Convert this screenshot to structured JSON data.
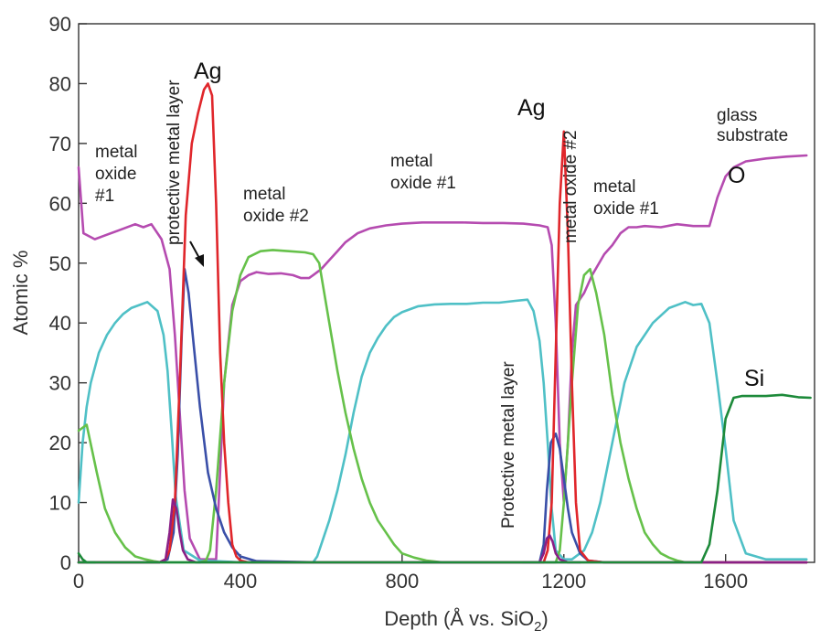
{
  "chart_data": {
    "type": "line",
    "xlabel": "Depth (Å vs. SiO",
    "xlabel_sub": "2",
    "xlabel_end": ")",
    "ylabel": "Atomic %",
    "xlim": [
      0,
      1820
    ],
    "ylim": [
      0,
      90
    ],
    "xticks": [
      "0",
      "400",
      "800",
      "1200",
      "1600"
    ],
    "xtick_values": [
      0,
      400,
      800,
      1200,
      1600
    ],
    "yticks": [
      "0",
      "10",
      "20",
      "30",
      "40",
      "50",
      "60",
      "70",
      "80",
      "90"
    ],
    "ytick_values": [
      0,
      10,
      20,
      30,
      40,
      50,
      60,
      70,
      80,
      90
    ],
    "grid": false,
    "annotations": {
      "metal_oxide_1_left": [
        "metal",
        "oxide",
        "#1"
      ],
      "protective_left": "protective metal layer",
      "ag_left": "Ag",
      "metal_oxide_2_left": [
        "metal",
        "oxide #2"
      ],
      "metal_oxide_1_mid": [
        "metal",
        "oxide #1"
      ],
      "ag_right": "Ag",
      "metal_oxide_2_right": "metal oxide #2",
      "protective_right": "Protective metal layer",
      "metal_oxide_1_right": [
        "metal",
        "oxide #1"
      ],
      "glass_substrate": [
        "glass",
        "substrate"
      ],
      "o_label": "O",
      "si_label": "Si"
    },
    "series": [
      {
        "color": "#b54bb0",
        "x": [
          0,
          12,
          40,
          60,
          100,
          140,
          160,
          180,
          205,
          225,
          238,
          250,
          262,
          275,
          300,
          320,
          340,
          360,
          380,
          400,
          420,
          440,
          470,
          500,
          530,
          550,
          570,
          580,
          600,
          620,
          640,
          660,
          690,
          720,
          760,
          800,
          850,
          900,
          950,
          1000,
          1050,
          1100,
          1140,
          1160,
          1170,
          1180,
          1190,
          1200,
          1210,
          1220,
          1230,
          1250,
          1270,
          1300,
          1320,
          1340,
          1360,
          1380,
          1400,
          1440,
          1480,
          1520,
          1560,
          1580,
          1600,
          1620,
          1650,
          1700,
          1750,
          1800
        ],
        "y": [
          66,
          55,
          54,
          54.5,
          55.5,
          56.5,
          56,
          56.5,
          54,
          49,
          38,
          25,
          12,
          4,
          0.5,
          0.5,
          0.5,
          30,
          43,
          47,
          48,
          48.5,
          48.2,
          48.3,
          48,
          47.5,
          47.5,
          48,
          49,
          50.5,
          52,
          53.5,
          55,
          55.8,
          56.3,
          56.6,
          56.8,
          56.8,
          56.8,
          56.7,
          56.7,
          56.6,
          56.3,
          56,
          53,
          40,
          20,
          10,
          20,
          35,
          43,
          45,
          48,
          51.5,
          53,
          55,
          56,
          56,
          56.2,
          56,
          56.5,
          56.2,
          56.2,
          61,
          64.5,
          66,
          67,
          67.5,
          67.8,
          68
        ]
      },
      {
        "color": "#4fc0c6",
        "x": [
          0,
          10,
          20,
          30,
          50,
          70,
          90,
          110,
          130,
          150,
          170,
          195,
          210,
          220,
          230,
          240,
          260,
          300,
          340,
          400,
          440,
          480,
          520,
          560,
          580,
          590,
          600,
          620,
          640,
          660,
          680,
          700,
          720,
          740,
          760,
          780,
          800,
          840,
          880,
          920,
          960,
          1000,
          1040,
          1080,
          1110,
          1125,
          1140,
          1150,
          1160,
          1170,
          1180,
          1200,
          1220,
          1250,
          1270,
          1290,
          1320,
          1350,
          1380,
          1420,
          1460,
          1500,
          1520,
          1540,
          1560,
          1580,
          1600,
          1620,
          1650,
          1700,
          1800
        ],
        "y": [
          10,
          20,
          26,
          30,
          35,
          38,
          40,
          41.5,
          42.5,
          43,
          43.5,
          42,
          38,
          32,
          22,
          11,
          2,
          0.3,
          0.2,
          0,
          0,
          0,
          0,
          0,
          0,
          1,
          3,
          7,
          12,
          18,
          25,
          31,
          35,
          37.5,
          39.5,
          41,
          41.8,
          42.8,
          43.1,
          43.2,
          43.2,
          43.4,
          43.4,
          43.7,
          43.9,
          42,
          37,
          30,
          20,
          9,
          2,
          0.5,
          0.5,
          2,
          5,
          10,
          20,
          30,
          36,
          40,
          42.5,
          43.5,
          43,
          43.2,
          40,
          30,
          19,
          7,
          1.5,
          0.5,
          0.5
        ]
      },
      {
        "color": "#66c14a",
        "x": [
          0,
          20,
          45,
          65,
          90,
          115,
          140,
          165,
          185,
          205,
          215,
          245,
          275,
          300,
          315,
          325,
          340,
          360,
          380,
          400,
          420,
          450,
          480,
          520,
          560,
          580,
          595,
          605,
          620,
          640,
          660,
          680,
          700,
          720,
          740,
          760,
          780,
          800,
          830,
          860,
          900,
          1000,
          1100,
          1180,
          1190,
          1200,
          1220,
          1235,
          1250,
          1265,
          1280,
          1300,
          1320,
          1340,
          1360,
          1380,
          1400,
          1420,
          1440,
          1460,
          1480,
          1500,
          1520,
          1540,
          1560,
          1580,
          1600,
          1620,
          1650,
          1700,
          1800
        ],
        "y": [
          22,
          23,
          15,
          9,
          5,
          2.5,
          1,
          0.5,
          0.2,
          0,
          0,
          0,
          0,
          0,
          0.3,
          2,
          12,
          30,
          42,
          48,
          51,
          52,
          52.2,
          52,
          51.8,
          51.5,
          50,
          46,
          40,
          32,
          25,
          19,
          14,
          10,
          7,
          5,
          3,
          1.5,
          0.8,
          0.3,
          0,
          0,
          0,
          0,
          2,
          10,
          30,
          43,
          48,
          49,
          45,
          38,
          28,
          20,
          14,
          9,
          5,
          3,
          1.5,
          0.8,
          0.3,
          0,
          0,
          0,
          0,
          0,
          0,
          0,
          0,
          0,
          0
        ]
      },
      {
        "color": "#3a4fa8",
        "x": [
          0,
          100,
          200,
          220,
          235,
          245,
          255,
          262,
          272,
          285,
          300,
          320,
          340,
          360,
          380,
          400,
          440,
          600,
          1000,
          1140,
          1150,
          1158,
          1168,
          1180,
          1190,
          1200,
          1210,
          1220,
          1240,
          1260,
          1300,
          1800
        ],
        "y": [
          0,
          0,
          0,
          0.5,
          5,
          18,
          38,
          49,
          45,
          36,
          26,
          15,
          9,
          5,
          2.5,
          1,
          0.2,
          0,
          0,
          0,
          3,
          12,
          20,
          21.5,
          19,
          14,
          9,
          5,
          1.5,
          0.3,
          0,
          0
        ]
      },
      {
        "color": "#e0262b",
        "x": [
          0,
          150,
          200,
          215,
          225,
          238,
          250,
          265,
          280,
          295,
          310,
          320,
          330,
          340,
          350,
          360,
          370,
          380,
          390,
          400,
          420,
          500,
          1000,
          1150,
          1160,
          1170,
          1180,
          1190,
          1200,
          1210,
          1220,
          1230,
          1240,
          1260,
          1300,
          1800
        ],
        "y": [
          0,
          0,
          0,
          0.5,
          2,
          10,
          30,
          58,
          70,
          75,
          79,
          80,
          78,
          60,
          35,
          20,
          10,
          3,
          1,
          0.3,
          0,
          0,
          0,
          0,
          2,
          10,
          35,
          60,
          72,
          55,
          30,
          10,
          2,
          0.3,
          0,
          0
        ]
      },
      {
        "color": "#8a1f86",
        "x": [
          0,
          200,
          215,
          225,
          233,
          242,
          250,
          258,
          270,
          290,
          300,
          1800
        ],
        "y": [
          0,
          0,
          0.5,
          5,
          10.5,
          9,
          5,
          2,
          0.5,
          0,
          0,
          0
        ]
      },
      {
        "color": "#8a1f86",
        "x": [
          1100,
          1140,
          1150,
          1158,
          1165,
          1172,
          1180,
          1190,
          1210,
          1240
        ],
        "y": [
          0,
          0,
          1.5,
          4,
          4.5,
          3.5,
          1.5,
          0.5,
          0,
          0
        ]
      },
      {
        "color": "#1d8a3a",
        "x": [
          0,
          1540,
          1560,
          1580,
          1600,
          1620,
          1640,
          1700,
          1740,
          1780,
          1810
        ],
        "y": [
          0,
          0,
          3,
          12,
          24,
          27.5,
          27.8,
          27.8,
          28,
          27.6,
          27.5
        ]
      },
      {
        "color": "#1d8a3a",
        "x": [
          0,
          10,
          20,
          40
        ],
        "y": [
          1.5,
          0.5,
          0,
          0
        ]
      }
    ]
  }
}
